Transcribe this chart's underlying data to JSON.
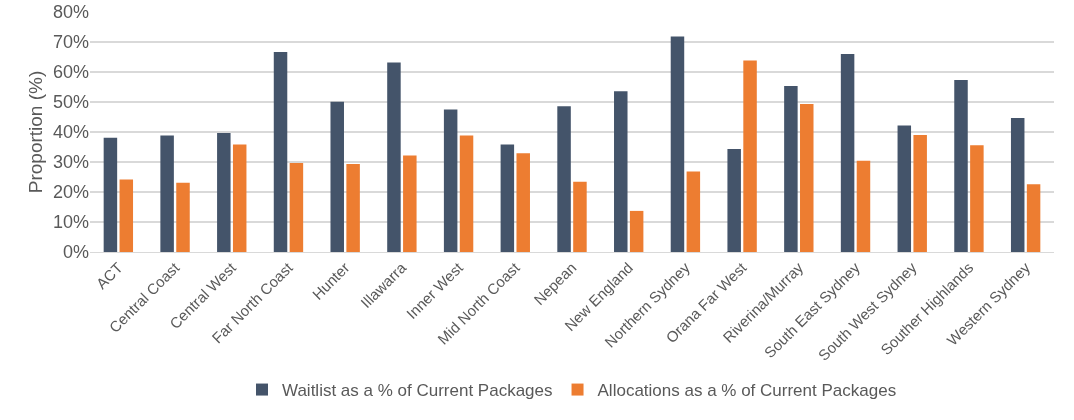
{
  "chart_data": {
    "type": "bar",
    "ylabel": "Proportion (%)",
    "categories": [
      "ACT",
      "Central Coast",
      "Central West",
      "Far North Coast",
      "Hunter",
      "Illawarra",
      "Inner West",
      "Mid North Coast",
      "Nepean",
      "New England",
      "Northern Sydney",
      "Orana Far West",
      "Riverina/Murray",
      "South East Sydney",
      "South West Sydney",
      "Souther Highlands",
      "Western Sydney"
    ],
    "series": [
      {
        "name": "Waitlist as a % of Current Packages",
        "color": "#44546a",
        "values": [
          38.1,
          38.8,
          39.7,
          66.7,
          50.1,
          63.2,
          47.5,
          35.8,
          48.6,
          53.6,
          71.8,
          34.3,
          55.3,
          66.0,
          42.2,
          57.3,
          44.7
        ]
      },
      {
        "name": "Allocations as a % of Current Packages",
        "color": "#ed7d31",
        "values": [
          24.2,
          23.1,
          35.8,
          29.7,
          29.3,
          32.2,
          38.8,
          32.9,
          23.4,
          13.7,
          26.8,
          63.8,
          49.3,
          30.4,
          39.0,
          35.6,
          22.6
        ]
      }
    ],
    "ylim": [
      0,
      80
    ],
    "yticks": [
      {
        "value": 0,
        "label": "0%"
      },
      {
        "value": 10,
        "label": "10%"
      },
      {
        "value": 20,
        "label": "20%"
      },
      {
        "value": 30,
        "label": "30%"
      },
      {
        "value": 40,
        "label": "40%"
      },
      {
        "value": 50,
        "label": "50%"
      },
      {
        "value": 60,
        "label": "60%"
      },
      {
        "value": 70,
        "label": "70%"
      },
      {
        "value": 80,
        "label": "80%"
      }
    ],
    "grid": "y",
    "legend": "bottom"
  }
}
